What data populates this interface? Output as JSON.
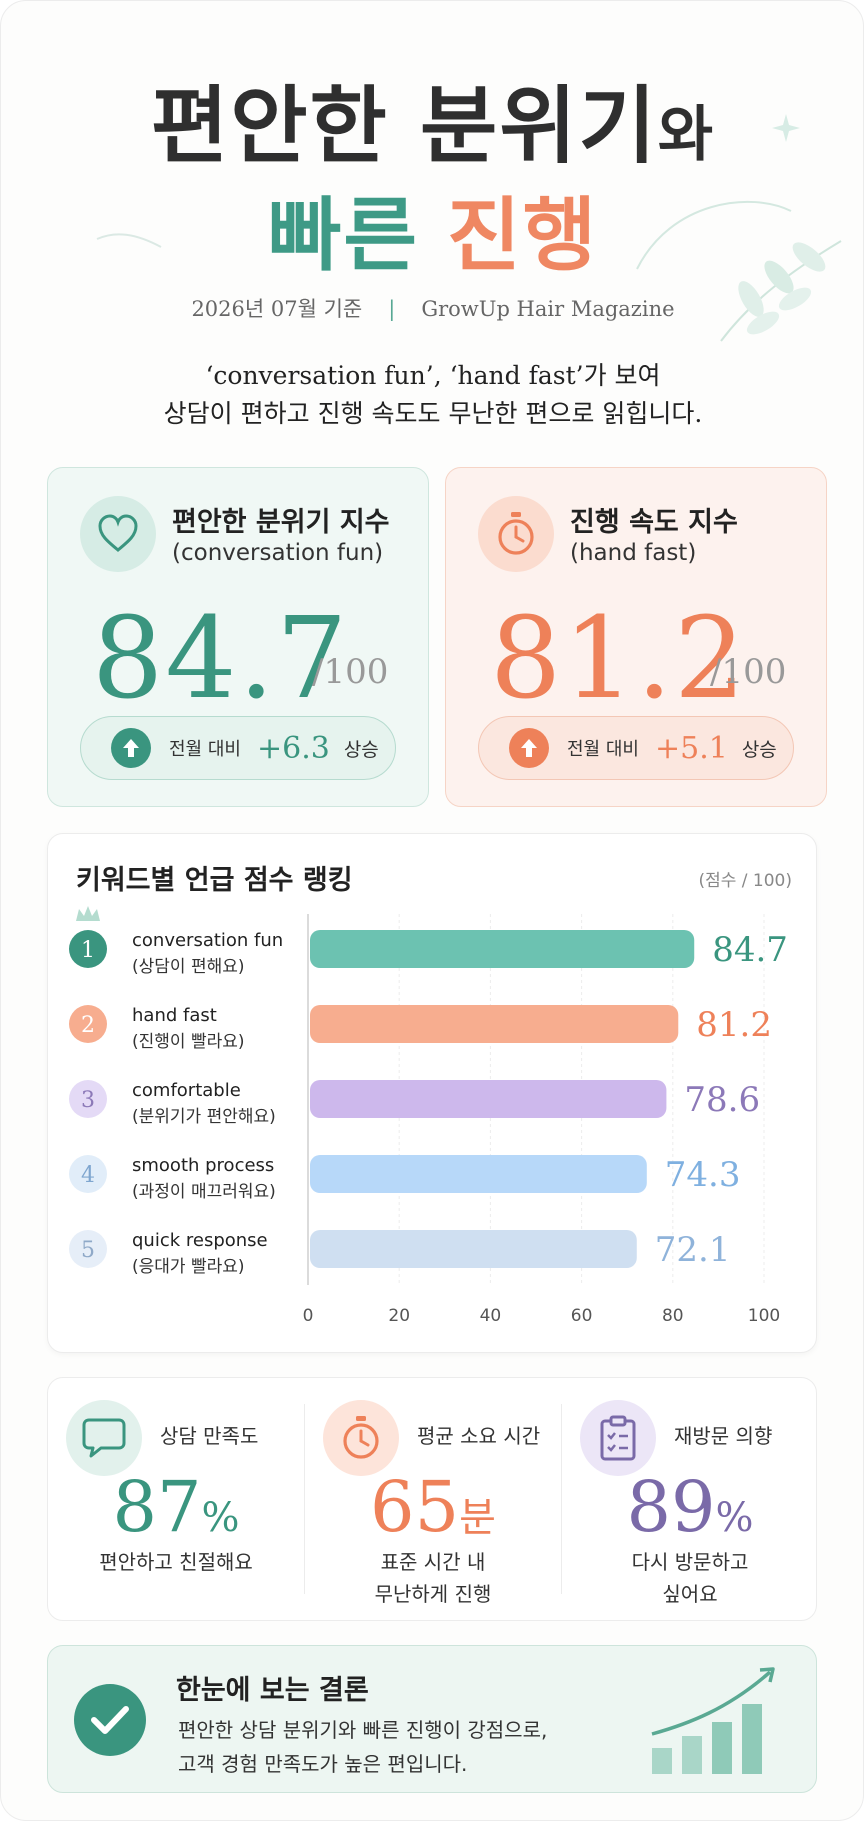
{
  "header": {
    "title_line1_main": "편안한 분위기",
    "title_line1_suffix": "와",
    "title_line2_teal": "빠른",
    "title_line2_coral": "진행",
    "date": "2026년 07월 기준",
    "separator": "|",
    "publisher": "GrowUp Hair Magazine",
    "lead_line1": "‘conversation fun’, ‘hand fast’가 보여",
    "lead_line2": "상담이 편하고 진행 속도도 무난한 편으로 읽힙니다."
  },
  "kpis": [
    {
      "title": "편안한 분위기 지수",
      "subtitle": "(conversation fun)",
      "score": "84.7",
      "out_of": "/100",
      "compare_label": "전월 대비",
      "delta": "+6.3",
      "trend": "상승",
      "icon": "heart-icon",
      "color": "#3a957f"
    },
    {
      "title": "진행 속도 지수",
      "subtitle": "(hand fast)",
      "score": "81.2",
      "out_of": "/100",
      "compare_label": "전월 대비",
      "delta": "+5.1",
      "trend": "상승",
      "icon": "stopwatch-icon",
      "color": "#ee8159"
    }
  ],
  "chart_data": {
    "type": "bar",
    "orientation": "horizontal",
    "title": "키워드별 언급 점수 랭킹",
    "unit_label": "(점수 / 100)",
    "categories": [
      {
        "rank": "1",
        "name": "conversation fun",
        "desc": "(상담이 편해요)",
        "value": 84.7,
        "label": "84.7",
        "color": "#6cc2b1",
        "label_color": "#3a957f",
        "badge_bg": "#3a957f",
        "badge_fg": "#ffffff"
      },
      {
        "rank": "2",
        "name": "hand fast",
        "desc": "(진행이 빨라요)",
        "value": 81.2,
        "label": "81.2",
        "color": "#f7ad8f",
        "label_color": "#ee8159",
        "badge_bg": "#f7ad8f",
        "badge_fg": "#ffffff"
      },
      {
        "rank": "3",
        "name": "comfortable",
        "desc": "(분위기가 편안해요)",
        "value": 78.6,
        "label": "78.6",
        "color": "#cdb8ec",
        "label_color": "#8c79b8",
        "badge_bg": "#e4daf6",
        "badge_fg": "#8c79b8"
      },
      {
        "rank": "4",
        "name": "smooth process",
        "desc": "(과정이 매끄러워요)",
        "value": 74.3,
        "label": "74.3",
        "color": "#b7d8f9",
        "label_color": "#7fb0e0",
        "badge_bg": "#e1edf9",
        "badge_fg": "#7fa6cf"
      },
      {
        "rank": "5",
        "name": "quick response",
        "desc": "(응대가 빨라요)",
        "value": 72.1,
        "label": "72.1",
        "color": "#cfdff1",
        "label_color": "#8fb3da",
        "badge_bg": "#e6eef8",
        "badge_fg": "#8fa9c8"
      }
    ],
    "xlim": [
      0,
      100
    ],
    "xticks": [
      "0",
      "20",
      "40",
      "60",
      "80",
      "100"
    ],
    "grid": true,
    "top_rank_icon": "crown-icon"
  },
  "stats": [
    {
      "label": "상담 만족도",
      "value": "87",
      "unit": "%",
      "desc_line1": "편안하고 친절해요",
      "desc_line2": "",
      "icon": "speech-bubble-icon",
      "color": "#3a957f"
    },
    {
      "label": "평균 소요 시간",
      "value": "65",
      "unit": "분",
      "desc_line1": "표준 시간 내",
      "desc_line2": "무난하게 진행",
      "icon": "stopwatch-icon",
      "color": "#ee8159"
    },
    {
      "label": "재방문 의향",
      "value": "89",
      "unit": "%",
      "desc_line1": "다시 방문하고",
      "desc_line2": "싶어요",
      "icon": "clipboard-icon",
      "color": "#7a6aa8"
    }
  ],
  "conclusion": {
    "title": "한눈에 보는 결론",
    "line1": "편안한 상담 분위기와 빠른 진행이 강점으로,",
    "line2": "고객 경험 만족도가 높은 편입니다.",
    "icon": "check-icon",
    "decor_icon": "growth-chart-icon"
  }
}
